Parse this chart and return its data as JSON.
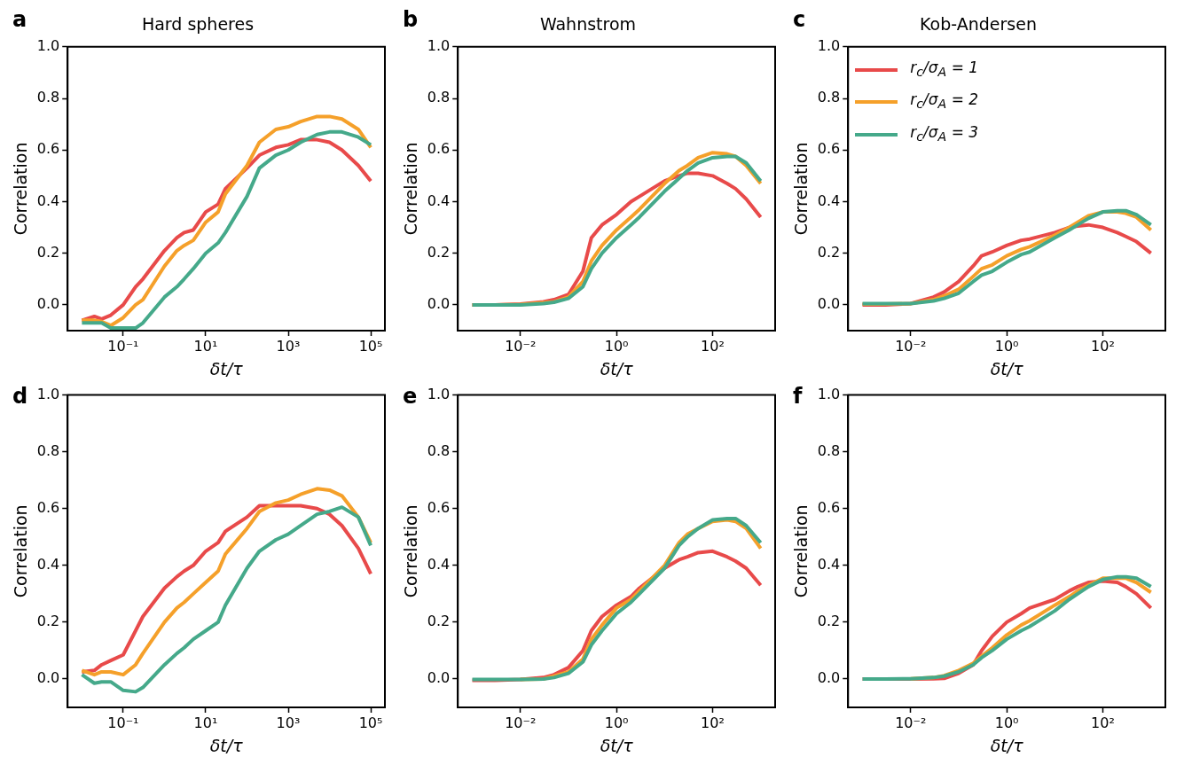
{
  "chart_data": [
    {
      "type": "line",
      "title": "Hard spheres",
      "annotations": [
        "a"
      ],
      "xlabel": "δt/τ",
      "ylabel": "Correlation",
      "log": "x",
      "grid": false,
      "legend": false,
      "x": [
        0.01,
        0.02,
        0.03,
        0.05,
        0.1,
        0.2,
        0.3,
        1,
        2,
        3,
        5,
        10,
        20,
        30,
        100,
        200,
        500,
        1000,
        2000,
        5000,
        10000,
        20000,
        50000,
        100000
      ],
      "series": [
        {
          "color": "#e84a4a",
          "values": [
            -0.06,
            -0.045,
            -0.055,
            -0.04,
            0.0,
            0.07,
            0.1,
            0.21,
            0.26,
            0.28,
            0.29,
            0.36,
            0.39,
            0.45,
            0.53,
            0.58,
            0.61,
            0.62,
            0.64,
            0.64,
            0.63,
            0.6,
            0.54,
            0.48
          ]
        },
        {
          "color": "#f5a02a",
          "values": [
            -0.06,
            -0.06,
            -0.065,
            -0.08,
            -0.05,
            0.0,
            0.02,
            0.15,
            0.21,
            0.23,
            0.25,
            0.32,
            0.36,
            0.43,
            0.54,
            0.63,
            0.68,
            0.69,
            0.71,
            0.73,
            0.73,
            0.72,
            0.68,
            0.61
          ]
        },
        {
          "color": "#45a98a",
          "values": [
            -0.07,
            -0.07,
            -0.07,
            -0.09,
            -0.09,
            -0.09,
            -0.07,
            0.03,
            0.07,
            0.1,
            0.14,
            0.2,
            0.24,
            0.28,
            0.42,
            0.53,
            0.58,
            0.6,
            0.63,
            0.66,
            0.67,
            0.67,
            0.65,
            0.62
          ]
        }
      ],
      "xlim": [
        0.0045,
        220000
      ],
      "xticks": [
        {
          "value": 0.1,
          "label": "10⁻¹"
        },
        {
          "value": 10,
          "label": "10¹"
        },
        {
          "value": 1000,
          "label": "10³"
        },
        {
          "value": 100000,
          "label": "10⁵"
        }
      ],
      "ylim": [
        -0.1,
        1.0
      ],
      "yticks": [
        {
          "value": 0,
          "label": "0.0"
        },
        {
          "value": 0.2,
          "label": "0.2"
        },
        {
          "value": 0.4,
          "label": "0.4"
        },
        {
          "value": 0.6,
          "label": "0.6"
        },
        {
          "value": 0.8,
          "label": "0.8"
        },
        {
          "value": 1,
          "label": "1.0"
        }
      ]
    },
    {
      "type": "line",
      "title": "Wahnstrom",
      "annotations": [
        "b"
      ],
      "xlabel": "δt/τ",
      "ylabel": "Correlation",
      "log": "x",
      "grid": false,
      "legend": false,
      "x": [
        0.001,
        0.003,
        0.01,
        0.03,
        0.05,
        0.1,
        0.2,
        0.3,
        0.5,
        1,
        2,
        3,
        10,
        20,
        30,
        50,
        100,
        200,
        300,
        500,
        1000
      ],
      "series": [
        {
          "color": "#e84a4a",
          "values": [
            0,
            0,
            0.003,
            0.012,
            0.02,
            0.04,
            0.13,
            0.26,
            0.31,
            0.35,
            0.4,
            0.42,
            0.48,
            0.5,
            0.51,
            0.51,
            0.5,
            0.47,
            0.45,
            0.41,
            0.34
          ]
        },
        {
          "color": "#f5a02a",
          "values": [
            0,
            0,
            0.001,
            0.008,
            0.012,
            0.03,
            0.09,
            0.17,
            0.23,
            0.29,
            0.34,
            0.37,
            0.47,
            0.52,
            0.54,
            0.57,
            0.59,
            0.585,
            0.575,
            0.54,
            0.47
          ]
        },
        {
          "color": "#45a98a",
          "values": [
            0,
            0,
            0,
            0.005,
            0.01,
            0.025,
            0.07,
            0.14,
            0.2,
            0.26,
            0.31,
            0.34,
            0.44,
            0.49,
            0.52,
            0.55,
            0.57,
            0.575,
            0.575,
            0.55,
            0.48
          ]
        }
      ],
      "xlim": [
        0.0005,
        2000
      ],
      "xticks": [
        {
          "value": 0.01,
          "label": "10⁻²"
        },
        {
          "value": 1,
          "label": "10⁰"
        },
        {
          "value": 100,
          "label": "10²"
        }
      ],
      "ylim": [
        -0.1,
        1.0
      ],
      "yticks": [
        {
          "value": 0,
          "label": "0.0"
        },
        {
          "value": 0.2,
          "label": "0.2"
        },
        {
          "value": 0.4,
          "label": "0.4"
        },
        {
          "value": 0.6,
          "label": "0.6"
        },
        {
          "value": 0.8,
          "label": "0.8"
        },
        {
          "value": 1,
          "label": "1.0"
        }
      ]
    },
    {
      "type": "line",
      "title": "Kob-Andersen",
      "annotations": [
        "c"
      ],
      "xlabel": "δt/τ",
      "ylabel": "Correlation",
      "log": "x",
      "grid": false,
      "legend": "top left",
      "x": [
        0.001,
        0.003,
        0.01,
        0.03,
        0.05,
        0.1,
        0.2,
        0.3,
        0.5,
        1,
        2,
        3,
        10,
        20,
        30,
        50,
        100,
        200,
        300,
        500,
        1000
      ],
      "series": [
        {
          "name": "r$_{c}$/σ$_{A}$ = 1",
          "color": "#e84a4a",
          "values": [
            0,
            0,
            0.005,
            0.03,
            0.05,
            0.09,
            0.15,
            0.19,
            0.205,
            0.23,
            0.25,
            0.255,
            0.28,
            0.3,
            0.305,
            0.31,
            0.3,
            0.28,
            0.265,
            0.245,
            0.2
          ]
        },
        {
          "name": "r$_{c}$/σ$_{A}$ = 2",
          "color": "#f5a02a",
          "values": [
            0.003,
            0.003,
            0.005,
            0.02,
            0.035,
            0.06,
            0.11,
            0.14,
            0.155,
            0.19,
            0.215,
            0.225,
            0.27,
            0.3,
            0.32,
            0.345,
            0.36,
            0.36,
            0.355,
            0.34,
            0.29
          ]
        },
        {
          "name": "r$_{c}$/σ$_{A}$ = 3",
          "color": "#45a98a",
          "values": [
            0.005,
            0.005,
            0.005,
            0.015,
            0.025,
            0.045,
            0.09,
            0.115,
            0.13,
            0.165,
            0.195,
            0.205,
            0.26,
            0.29,
            0.31,
            0.335,
            0.36,
            0.365,
            0.365,
            0.35,
            0.31
          ]
        }
      ],
      "xlim": [
        0.0005,
        2000
      ],
      "xticks": [
        {
          "value": 0.01,
          "label": "10⁻²"
        },
        {
          "value": 1,
          "label": "10⁰"
        },
        {
          "value": 100,
          "label": "10²"
        }
      ],
      "ylim": [
        -0.1,
        1.0
      ],
      "yticks": [
        {
          "value": 0,
          "label": "0.0"
        },
        {
          "value": 0.2,
          "label": "0.2"
        },
        {
          "value": 0.4,
          "label": "0.4"
        },
        {
          "value": 0.6,
          "label": "0.6"
        },
        {
          "value": 0.8,
          "label": "0.8"
        },
        {
          "value": 1,
          "label": "1.0"
        }
      ]
    },
    {
      "type": "line",
      "annotations": [
        "d"
      ],
      "xlabel": "δt/τ",
      "ylabel": "Correlation",
      "log": "x",
      "grid": false,
      "legend": false,
      "x": [
        0.01,
        0.02,
        0.03,
        0.05,
        0.1,
        0.2,
        0.3,
        1,
        2,
        3,
        5,
        10,
        20,
        30,
        100,
        200,
        500,
        1000,
        2000,
        5000,
        10000,
        20000,
        50000,
        100000
      ],
      "series": [
        {
          "color": "#e84a4a",
          "values": [
            0.025,
            0.03,
            0.05,
            0.065,
            0.085,
            0.17,
            0.22,
            0.32,
            0.36,
            0.38,
            0.4,
            0.45,
            0.48,
            0.52,
            0.57,
            0.61,
            0.61,
            0.61,
            0.61,
            0.6,
            0.58,
            0.54,
            0.46,
            0.37
          ]
        },
        {
          "color": "#f5a02a",
          "values": [
            0.03,
            0.015,
            0.025,
            0.025,
            0.015,
            0.05,
            0.09,
            0.2,
            0.25,
            0.27,
            0.3,
            0.34,
            0.38,
            0.44,
            0.53,
            0.59,
            0.62,
            0.63,
            0.65,
            0.67,
            0.665,
            0.645,
            0.57,
            0.48
          ]
        },
        {
          "color": "#45a98a",
          "values": [
            0.015,
            -0.015,
            -0.01,
            -0.01,
            -0.04,
            -0.045,
            -0.03,
            0.05,
            0.09,
            0.11,
            0.14,
            0.17,
            0.2,
            0.26,
            0.39,
            0.45,
            0.49,
            0.51,
            0.54,
            0.58,
            0.59,
            0.605,
            0.57,
            0.47
          ]
        }
      ],
      "xlim": [
        0.0045,
        220000
      ],
      "xticks": [
        {
          "value": 0.1,
          "label": "10⁻¹"
        },
        {
          "value": 10,
          "label": "10¹"
        },
        {
          "value": 1000,
          "label": "10³"
        },
        {
          "value": 100000,
          "label": "10⁵"
        }
      ],
      "ylim": [
        -0.1,
        1.0
      ],
      "yticks": [
        {
          "value": 0,
          "label": "0.0"
        },
        {
          "value": 0.2,
          "label": "0.2"
        },
        {
          "value": 0.4,
          "label": "0.4"
        },
        {
          "value": 0.6,
          "label": "0.6"
        },
        {
          "value": 0.8,
          "label": "0.8"
        },
        {
          "value": 1,
          "label": "1.0"
        }
      ]
    },
    {
      "type": "line",
      "annotations": [
        "e"
      ],
      "xlabel": "δt/τ",
      "ylabel": "Correlation",
      "log": "x",
      "grid": false,
      "legend": false,
      "x": [
        0.001,
        0.003,
        0.01,
        0.03,
        0.05,
        0.1,
        0.2,
        0.3,
        0.5,
        1,
        2,
        3,
        10,
        20,
        30,
        50,
        100,
        200,
        300,
        500,
        1000
      ],
      "series": [
        {
          "color": "#e84a4a",
          "values": [
            -0.005,
            -0.005,
            -0.002,
            0.005,
            0.015,
            0.04,
            0.1,
            0.17,
            0.22,
            0.26,
            0.29,
            0.32,
            0.39,
            0.42,
            0.43,
            0.445,
            0.45,
            0.43,
            0.415,
            0.39,
            0.33
          ]
        },
        {
          "color": "#f5a02a",
          "values": [
            null,
            null,
            -0.002,
            0,
            0.01,
            0.025,
            0.07,
            0.14,
            0.19,
            0.25,
            0.28,
            0.31,
            0.4,
            0.48,
            0.51,
            0.53,
            0.555,
            0.56,
            0.555,
            0.53,
            0.46
          ]
        },
        {
          "color": "#45a98a",
          "values": [
            -0.002,
            -0.002,
            -0.002,
            0,
            0.005,
            0.02,
            0.06,
            0.12,
            0.17,
            0.23,
            0.27,
            0.3,
            0.39,
            0.47,
            0.5,
            0.53,
            0.56,
            0.565,
            0.565,
            0.54,
            0.48
          ]
        }
      ],
      "xlim": [
        0.0005,
        2000
      ],
      "xticks": [
        {
          "value": 0.01,
          "label": "10⁻²"
        },
        {
          "value": 1,
          "label": "10⁰"
        },
        {
          "value": 100,
          "label": "10²"
        }
      ],
      "ylim": [
        -0.1,
        1.0
      ],
      "yticks": [
        {
          "value": 0,
          "label": "0.0"
        },
        {
          "value": 0.2,
          "label": "0.2"
        },
        {
          "value": 0.4,
          "label": "0.4"
        },
        {
          "value": 0.6,
          "label": "0.6"
        },
        {
          "value": 0.8,
          "label": "0.8"
        },
        {
          "value": 1,
          "label": "1.0"
        }
      ]
    },
    {
      "type": "line",
      "annotations": [
        "f"
      ],
      "xlabel": "δt/τ",
      "ylabel": "Correlation",
      "log": "x",
      "grid": false,
      "legend": false,
      "x": [
        0.001,
        0.003,
        0.01,
        0.03,
        0.05,
        0.1,
        0.2,
        0.3,
        0.5,
        1,
        2,
        3,
        10,
        20,
        30,
        50,
        100,
        200,
        300,
        500,
        1000
      ],
      "series": [
        {
          "color": "#e84a4a",
          "values": [
            0,
            0,
            0,
            0.001,
            0.002,
            0.02,
            0.05,
            0.1,
            0.15,
            0.2,
            0.23,
            0.25,
            0.28,
            0.31,
            0.325,
            0.34,
            0.345,
            0.34,
            0.325,
            0.3,
            0.25
          ]
        },
        {
          "color": "#f5a02a",
          "values": [
            null,
            null,
            0.001,
            0.005,
            0.012,
            0.03,
            0.055,
            0.08,
            0.11,
            0.155,
            0.19,
            0.205,
            0.26,
            0.29,
            0.31,
            0.33,
            0.355,
            0.355,
            0.355,
            0.34,
            0.305
          ]
        },
        {
          "color": "#45a98a",
          "values": [
            0,
            0,
            0.001,
            0.005,
            0.01,
            0.025,
            0.05,
            0.075,
            0.1,
            0.14,
            0.17,
            0.185,
            0.24,
            0.28,
            0.3,
            0.325,
            0.35,
            0.36,
            0.36,
            0.355,
            0.325
          ]
        }
      ],
      "xlim": [
        0.0005,
        2000
      ],
      "xticks": [
        {
          "value": 0.01,
          "label": "10⁻²"
        },
        {
          "value": 1,
          "label": "10⁰"
        },
        {
          "value": 100,
          "label": "10²"
        }
      ],
      "ylim": [
        -0.1,
        1.0
      ],
      "yticks": [
        {
          "value": 0,
          "label": "0.0"
        },
        {
          "value": 0.2,
          "label": "0.2"
        },
        {
          "value": 0.4,
          "label": "0.4"
        },
        {
          "value": 0.6,
          "label": "0.6"
        },
        {
          "value": 0.8,
          "label": "0.8"
        },
        {
          "value": 1,
          "label": "1.0"
        }
      ]
    }
  ]
}
